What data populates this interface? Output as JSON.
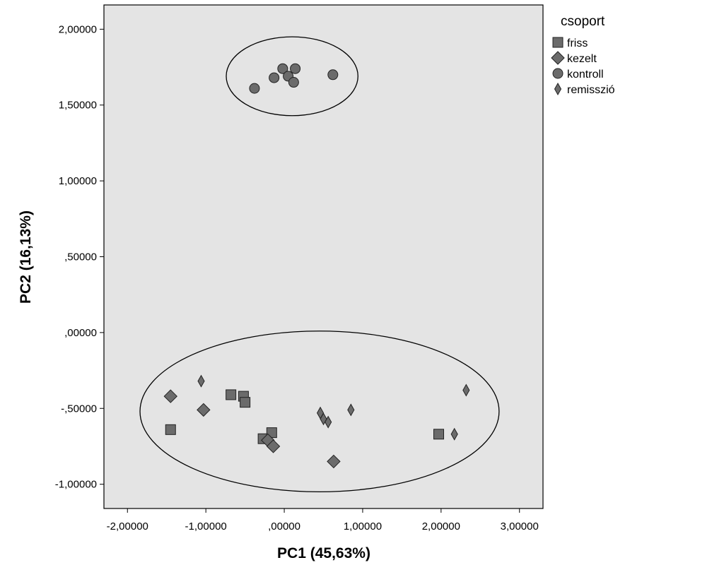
{
  "chart_data": {
    "type": "scatter",
    "title": "",
    "xlabel": "PC1 (45,63%)",
    "ylabel": "PC2 (16,13%)",
    "xlim": [
      -2.3,
      3.3
    ],
    "ylim": [
      -1.16,
      2.16
    ],
    "x_ticks": [
      -2,
      -1,
      0,
      1,
      2,
      3
    ],
    "x_tick_labels": [
      "-2,00000",
      "-1,00000",
      ",00000",
      "1,00000",
      "2,00000",
      "3,00000"
    ],
    "y_ticks": [
      2,
      1.5,
      1,
      0.5,
      0,
      -0.5,
      -1
    ],
    "y_tick_labels": [
      "2,00000",
      "1,50000",
      "1,00000",
      ",50000",
      ",00000",
      "-,50000",
      "-1,00000"
    ],
    "grid": false,
    "background_color": "#e4e4e4",
    "marker_color": "#6b6b6b",
    "legend_title": "csoport",
    "legend_position": "right",
    "series": [
      {
        "name": "friss",
        "marker": "square",
        "points": [
          [
            -1.45,
            -0.64
          ],
          [
            -0.68,
            -0.41
          ],
          [
            -0.52,
            -0.42
          ],
          [
            -0.5,
            -0.46
          ],
          [
            -0.27,
            -0.7
          ],
          [
            -0.16,
            -0.66
          ],
          [
            1.97,
            -0.67
          ]
        ]
      },
      {
        "name": "kezelt",
        "marker": "diamond",
        "points": [
          [
            -1.45,
            -0.42
          ],
          [
            -1.03,
            -0.51
          ],
          [
            -0.21,
            -0.71
          ],
          [
            -0.14,
            -0.75
          ],
          [
            0.63,
            -0.85
          ]
        ]
      },
      {
        "name": "kontroll",
        "marker": "circle",
        "points": [
          [
            -0.38,
            1.61
          ],
          [
            -0.13,
            1.68
          ],
          [
            -0.02,
            1.74
          ],
          [
            0.05,
            1.69
          ],
          [
            0.12,
            1.65
          ],
          [
            0.14,
            1.74
          ],
          [
            0.62,
            1.7
          ]
        ]
      },
      {
        "name": "remisszió",
        "marker": "thin-diamond",
        "points": [
          [
            -1.06,
            -0.32
          ],
          [
            0.46,
            -0.53
          ],
          [
            0.5,
            -0.57
          ],
          [
            0.56,
            -0.59
          ],
          [
            0.85,
            -0.51
          ],
          [
            2.17,
            -0.67
          ],
          [
            2.32,
            -0.38
          ]
        ]
      }
    ],
    "ellipses": [
      {
        "center": [
          0.1,
          1.69
        ],
        "rx": 0.84,
        "ry": 0.26
      },
      {
        "center": [
          0.45,
          -0.52
        ],
        "rx": 2.29,
        "ry": 0.53
      }
    ]
  }
}
